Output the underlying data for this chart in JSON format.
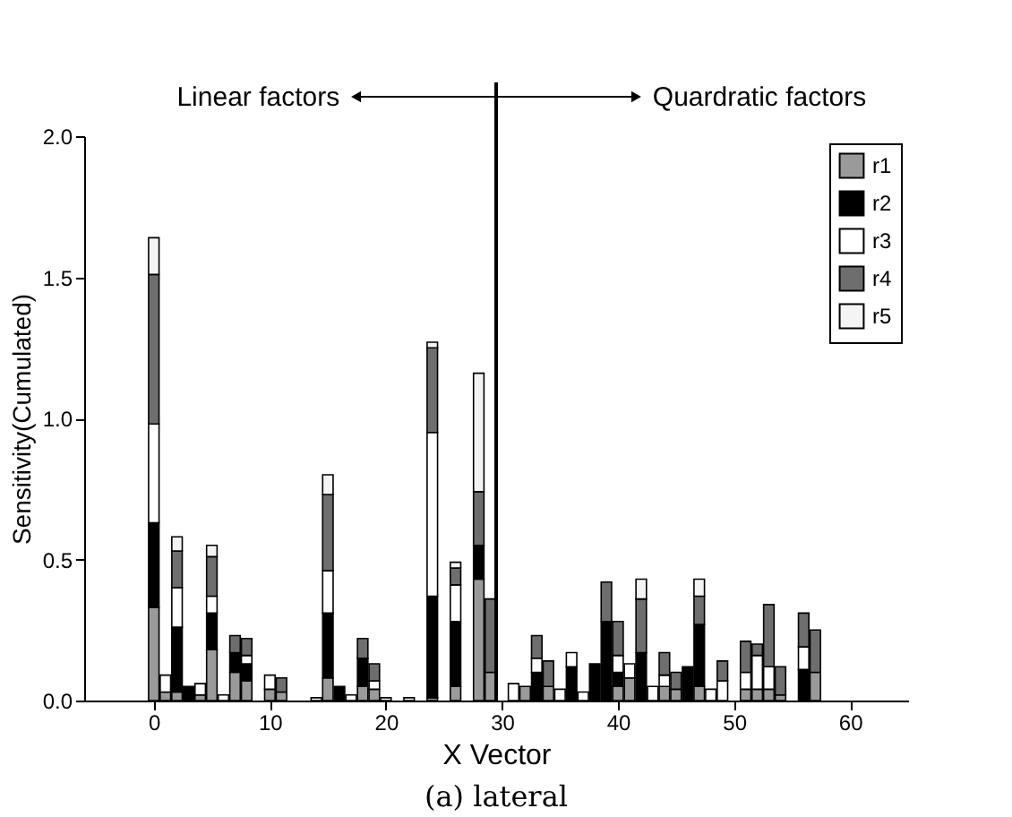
{
  "chart_data": {
    "type": "bar",
    "stacked": true,
    "title": "(a) lateral",
    "xlabel": "X Vector",
    "ylabel": "Sensitivity(Cumulated)",
    "annotations": [
      "Linear factors",
      "Quardratic factors"
    ],
    "x": [
      0,
      1,
      2,
      3,
      4,
      5,
      6,
      7,
      8,
      10,
      11,
      14,
      15,
      16,
      17,
      18,
      19,
      20,
      22,
      24,
      26,
      28,
      29,
      31,
      32,
      33,
      34,
      35,
      36,
      37,
      38,
      39,
      40,
      41,
      42,
      43,
      44,
      45,
      46,
      47,
      48,
      49,
      51,
      52,
      53,
      54,
      56,
      57
    ],
    "series": [
      {
        "name": "r1",
        "color": "#9a9a9a",
        "values": [
          0.33,
          0.03,
          0.03,
          null,
          0.02,
          0.18,
          null,
          0.1,
          0.07,
          0.04,
          0.03,
          null,
          0.08,
          null,
          null,
          0.05,
          0.04,
          null,
          null,
          0.01,
          0.05,
          0.43,
          0.1,
          null,
          0.05,
          null,
          0.05,
          null,
          null,
          null,
          null,
          null,
          0.05,
          0.08,
          null,
          null,
          0.05,
          0.04,
          null,
          0.05,
          null,
          null,
          0.04,
          0.04,
          0.04,
          0.02,
          null,
          0.1
        ]
      },
      {
        "name": "r2",
        "color": "#000000",
        "values": [
          0.3,
          null,
          0.23,
          0.05,
          null,
          0.13,
          null,
          0.07,
          0.06,
          null,
          null,
          null,
          0.23,
          0.05,
          null,
          0.1,
          null,
          null,
          null,
          0.36,
          0.23,
          0.12,
          null,
          null,
          null,
          0.1,
          null,
          null,
          0.12,
          null,
          0.13,
          0.28,
          0.05,
          null,
          0.17,
          null,
          null,
          null,
          0.12,
          0.22,
          null,
          null,
          null,
          null,
          null,
          null,
          0.11,
          null
        ]
      },
      {
        "name": "r3",
        "color": "#ffffff",
        "values": [
          0.35,
          0.06,
          0.14,
          null,
          0.04,
          0.06,
          0.02,
          null,
          0.03,
          0.05,
          null,
          0.01,
          0.15,
          null,
          0.02,
          null,
          0.03,
          0.01,
          0.01,
          0.58,
          0.13,
          null,
          null,
          0.06,
          null,
          0.05,
          null,
          0.04,
          0.05,
          0.03,
          null,
          null,
          0.06,
          0.05,
          null,
          0.05,
          0.04,
          null,
          null,
          null,
          0.04,
          0.07,
          0.06,
          0.12,
          0.08,
          null,
          0.08,
          null
        ]
      },
      {
        "name": "r4",
        "color": "#6e6e6e",
        "values": [
          0.53,
          null,
          0.13,
          null,
          null,
          0.14,
          null,
          0.06,
          0.06,
          null,
          0.05,
          null,
          0.27,
          null,
          null,
          0.07,
          0.06,
          null,
          null,
          0.3,
          0.06,
          0.19,
          0.26,
          null,
          null,
          0.08,
          0.09,
          null,
          null,
          null,
          null,
          0.14,
          0.12,
          null,
          0.19,
          null,
          0.08,
          0.06,
          null,
          0.1,
          null,
          0.07,
          0.11,
          0.04,
          0.22,
          0.1,
          0.12,
          0.15
        ]
      },
      {
        "name": "r5",
        "color": "#f4f4f4",
        "values": [
          0.13,
          null,
          0.05,
          null,
          null,
          0.04,
          null,
          null,
          null,
          null,
          null,
          null,
          0.07,
          null,
          null,
          null,
          null,
          null,
          null,
          0.02,
          0.02,
          0.42,
          null,
          null,
          null,
          null,
          null,
          null,
          null,
          null,
          null,
          null,
          null,
          null,
          0.07,
          null,
          null,
          null,
          null,
          0.06,
          null,
          null,
          null,
          null,
          null,
          null,
          null,
          null
        ]
      }
    ],
    "xlim": [
      -6,
      65
    ],
    "xticks": [
      0,
      10,
      20,
      30,
      40,
      50,
      60
    ],
    "ylim": [
      0,
      2.0
    ],
    "yticks": [
      {
        "value": 0,
        "label": "0.0"
      },
      {
        "value": 0.5,
        "label": "0.5"
      },
      {
        "value": 1.0,
        "label": "1.0"
      },
      {
        "value": 1.5,
        "label": "1.5"
      },
      {
        "value": 2.0,
        "label": "2.0"
      }
    ],
    "ref_lines": [
      {
        "axis": "x",
        "value": 29.5,
        "color": "#000000"
      }
    ],
    "legend": "top right"
  }
}
